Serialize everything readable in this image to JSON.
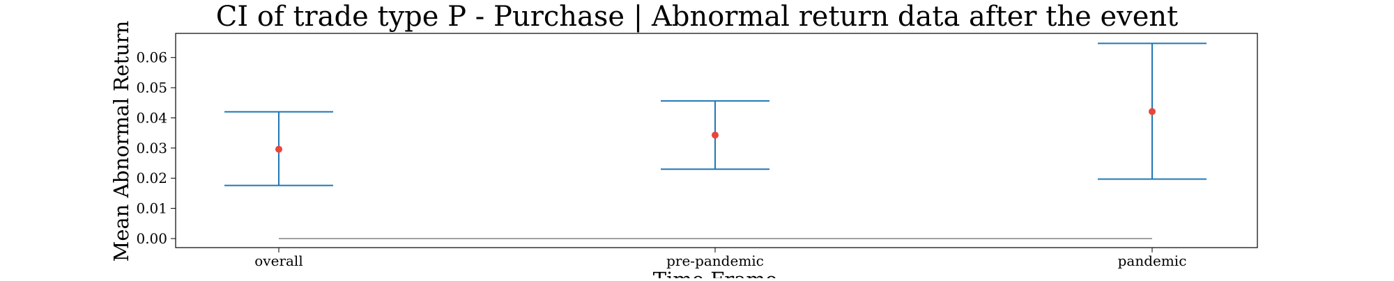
{
  "chart_data": {
    "type": "errorbar",
    "title": "CI of trade type  P - Purchase | Abnormal return data after the event",
    "xlabel": "Time Frame",
    "ylabel": "Mean Abnormal Return",
    "categories": [
      "overall",
      "pre-pandemic",
      "pandemic"
    ],
    "series": [
      {
        "mean": [
          0.0296,
          0.0343,
          0.0421
        ],
        "ci_low": [
          0.0176,
          0.023,
          0.0197
        ],
        "ci_high": [
          0.042,
          0.0456,
          0.0647
        ]
      }
    ],
    "ylim": [
      -0.003,
      0.068
    ],
    "yticks": [
      0.0,
      0.01,
      0.02,
      0.03,
      0.04,
      0.05,
      0.06
    ],
    "ytick_labels": [
      "0.00",
      "0.01",
      "0.02",
      "0.03",
      "0.04",
      "0.05",
      "0.06"
    ],
    "reference_line": 0.0,
    "grid": false,
    "colors": {
      "errorbar": "#1f77b4",
      "mean_marker": "#e8453c",
      "reference_line": "#808080"
    }
  }
}
